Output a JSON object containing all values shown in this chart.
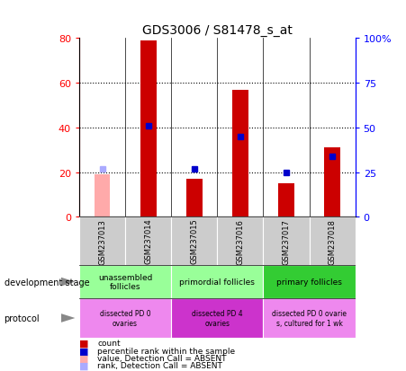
{
  "title": "GDS3006 / S81478_s_at",
  "samples": [
    "GSM237013",
    "GSM237014",
    "GSM237015",
    "GSM237016",
    "GSM237017",
    "GSM237018"
  ],
  "count_values": [
    19,
    79,
    17,
    57,
    15,
    31
  ],
  "count_absent": [
    true,
    false,
    false,
    false,
    false,
    false
  ],
  "rank_values": [
    27,
    51,
    27,
    45,
    25,
    34
  ],
  "rank_absent": [
    true,
    false,
    false,
    false,
    false,
    false
  ],
  "yticks_left": [
    0,
    20,
    40,
    60,
    80
  ],
  "ytick_labels_left": [
    "0",
    "20",
    "40",
    "60",
    "80"
  ],
  "yticks_right": [
    0,
    25,
    50,
    75,
    100
  ],
  "ytick_labels_right": [
    "0",
    "25",
    "50",
    "75",
    "100%"
  ],
  "bar_color_present": "#cc0000",
  "bar_color_absent": "#ffaaaa",
  "dot_color_present": "#0000cc",
  "dot_color_absent": "#aaaaff",
  "bar_width": 0.35,
  "dev_colors": [
    "#99ff99",
    "#99ff99",
    "#33cc33"
  ],
  "dev_labels": [
    "unassembled\nfollicles",
    "primordial follicles",
    "primary follicles"
  ],
  "dev_ranges": [
    [
      0,
      2
    ],
    [
      2,
      4
    ],
    [
      4,
      6
    ]
  ],
  "proto_colors": [
    "#ee88ee",
    "#cc33cc",
    "#ee88ee"
  ],
  "proto_labels": [
    "dissected PD 0\novaries",
    "dissected PD 4\novaries",
    "dissected PD 0 ovarie\ns, cultured for 1 wk"
  ],
  "proto_ranges": [
    [
      0,
      2
    ],
    [
      2,
      4
    ],
    [
      4,
      6
    ]
  ],
  "legend_items": [
    {
      "label": "count",
      "color": "#cc0000"
    },
    {
      "label": "percentile rank within the sample",
      "color": "#0000cc"
    },
    {
      "label": "value, Detection Call = ABSENT",
      "color": "#ffaaaa"
    },
    {
      "label": "rank, Detection Call = ABSENT",
      "color": "#aaaaff"
    }
  ],
  "left_label_dev": "development stage",
  "left_label_proto": "protocol",
  "tick_area_color": "#cccccc"
}
